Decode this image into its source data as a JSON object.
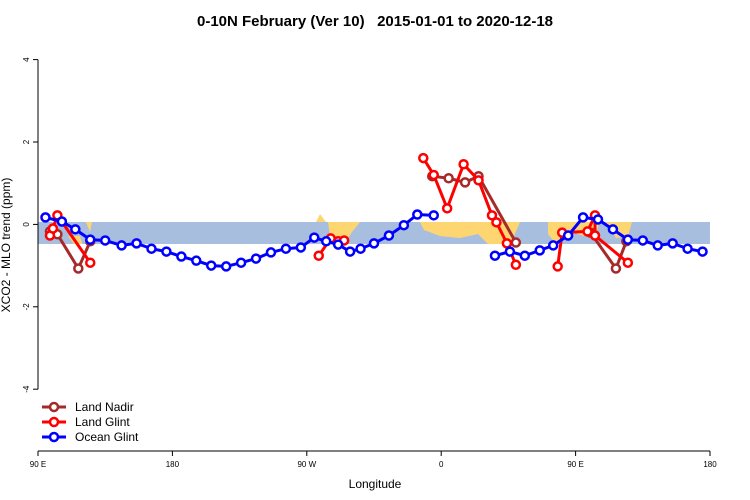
{
  "chart_data": {
    "type": "line",
    "title": "0-10N February (Ver 10)   2015-01-01 to 2020-12-18",
    "x_label": "Longitude",
    "y_label": "XCO2 - MLO trend (ppm)",
    "xlim": [
      -270,
      180
    ],
    "xticks": [
      {
        "value": -270,
        "label": "90 E"
      },
      {
        "value": -180,
        "label": "180"
      },
      {
        "value": -90,
        "label": "90 W"
      },
      0,
      {
        "value": 90,
        "label": "90 E"
      },
      180
    ],
    "ylim": [
      -5.5,
      4.5
    ],
    "yticks": [
      -4,
      -2,
      0,
      2,
      4
    ],
    "legend": "bottom-left",
    "series": [
      {
        "name": "Land Nadir",
        "color": "#a52a2a",
        "x": [
          -262,
          -257,
          -243,
          -235,
          null,
          -6,
          5,
          16,
          25,
          50,
          null,
          100,
          117,
          124
        ],
        "values": [
          -0.17,
          -0.24,
          -1.07,
          -0.41,
          null,
          1.17,
          1.12,
          1.02,
          1.17,
          -0.44,
          null,
          -0.2,
          -1.07,
          -0.41
        ]
      },
      {
        "name": "Land Glint",
        "color": "#ff0000",
        "x": [
          -262,
          -260,
          -257,
          -235,
          null,
          -82,
          -74,
          -69,
          -65,
          null,
          -12,
          -5,
          4,
          15,
          25,
          34,
          37,
          44,
          50,
          null,
          78,
          81,
          98,
          103,
          103,
          125
        ],
        "values": [
          -0.27,
          -0.1,
          0.22,
          -0.93,
          null,
          -0.76,
          -0.34,
          -0.41,
          -0.39,
          null,
          1.61,
          1.2,
          0.39,
          1.46,
          1.07,
          0.22,
          0.05,
          -0.46,
          -0.98,
          null,
          -1.02,
          -0.2,
          -0.17,
          0.22,
          -0.27,
          -0.93
        ]
      },
      {
        "name": "Ocean Glint",
        "color": "#0000ff",
        "x": [
          -265,
          -254,
          -245,
          -235,
          -225,
          -214,
          -204,
          -194,
          -184,
          -174,
          -164,
          -154,
          -144,
          -134,
          -124,
          -114,
          -104,
          -94,
          -85,
          -77,
          -69,
          -61,
          -54,
          -45,
          -35,
          -25,
          -16,
          -5,
          null,
          36,
          46,
          56,
          66,
          75,
          85,
          95,
          105,
          115,
          125,
          135,
          145,
          155,
          165,
          175
        ],
        "values": [
          0.17,
          0.07,
          -0.12,
          -0.37,
          -0.39,
          -0.51,
          -0.46,
          -0.59,
          -0.66,
          -0.78,
          -0.88,
          -1.0,
          -1.02,
          -0.93,
          -0.83,
          -0.68,
          -0.59,
          -0.56,
          -0.32,
          -0.41,
          -0.49,
          -0.66,
          -0.59,
          -0.46,
          -0.27,
          -0.02,
          0.24,
          0.22,
          null,
          -0.76,
          -0.66,
          -0.76,
          -0.63,
          -0.51,
          -0.27,
          0.17,
          0.12,
          -0.12,
          -0.37,
          -0.39,
          -0.51,
          -0.46,
          -0.59,
          -0.66
        ]
      }
    ]
  }
}
